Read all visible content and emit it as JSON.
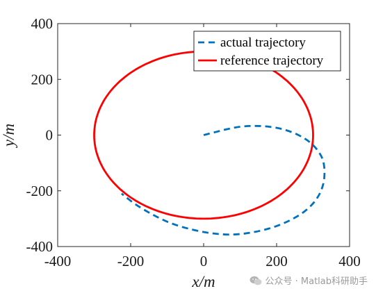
{
  "chart_data": {
    "type": "line",
    "title": "",
    "xlabel": "x/m",
    "ylabel": "y/m",
    "xlim": [
      -400,
      400
    ],
    "ylim": [
      -400,
      400
    ],
    "xticks": [
      -400,
      -200,
      0,
      200,
      400
    ],
    "yticks": [
      -400,
      -200,
      0,
      200,
      400
    ],
    "xtick_labels": [
      "-400",
      "-200",
      "0",
      "200",
      "400"
    ],
    "ytick_labels": [
      "-400",
      "-200",
      "0",
      "200",
      "400"
    ],
    "grid": false,
    "legend_position": "top-right",
    "series": [
      {
        "name": "actual trajectory",
        "color": "#0072BD",
        "style": "dashed",
        "x": [
          0,
          30,
          60,
          100,
          140,
          180,
          220,
          260,
          295,
          320,
          330,
          330,
          320,
          300,
          270,
          230,
          185,
          130,
          75,
          20,
          -35,
          -90,
          -140,
          -185,
          -225
        ],
        "y": [
          0,
          10,
          20,
          30,
          33,
          30,
          20,
          0,
          -30,
          -70,
          -110,
          -160,
          -205,
          -245,
          -280,
          -310,
          -333,
          -350,
          -357,
          -352,
          -338,
          -316,
          -285,
          -250,
          -210
        ]
      },
      {
        "name": "reference trajectory",
        "color": "#FF0000",
        "style": "solid",
        "shape": "circle",
        "center": [
          0,
          0
        ],
        "radius": 300
      }
    ]
  },
  "watermark": {
    "icon": "wechat-icon",
    "text": "公众号 · Matlab科研助手"
  }
}
